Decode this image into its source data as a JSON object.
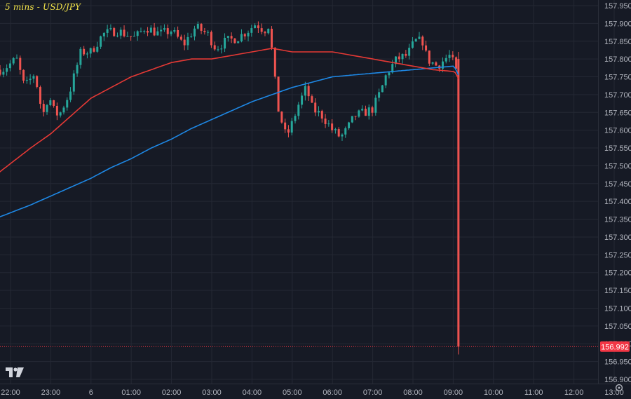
{
  "title": "5 mins - USD/JPY",
  "colors": {
    "background": "#161a25",
    "grid": "#242834",
    "axis_text": "#b2b5be",
    "up": "#26a69a",
    "down": "#ef5350",
    "ma_fast": "#e53935",
    "ma_slow": "#1e88e5",
    "price_tag": "#f23645"
  },
  "chart_data": {
    "type": "candlestick",
    "title": "5 mins - USD/JPY",
    "interval": "5 mins",
    "symbol": "USD/JPY",
    "x_ticks": [
      "22:00",
      "23:00",
      "6",
      "01:00",
      "02:00",
      "03:00",
      "04:00",
      "05:00",
      "06:00",
      "07:00",
      "08:00",
      "09:00",
      "10:00",
      "11:00",
      "12:00",
      "13:00"
    ],
    "ylim": [
      156.88,
      157.97
    ],
    "y_ticks": [
      157.95,
      157.9,
      157.85,
      157.8,
      157.75,
      157.7,
      157.65,
      157.6,
      157.55,
      157.5,
      157.45,
      157.4,
      157.35,
      157.3,
      157.25,
      157.2,
      157.15,
      157.1,
      157.05,
      157.0,
      156.95,
      156.9
    ],
    "y_tick_labels": [
      "157.950",
      "157.900",
      "157.850",
      "157.800",
      "157.750",
      "157.700",
      "157.650",
      "157.600",
      "157.550",
      "157.500",
      "157.450",
      "157.400",
      "157.350",
      "157.300",
      "157.250",
      "157.200",
      "157.150",
      "157.100",
      "157.050",
      "157.000",
      "156.950",
      "156.900"
    ],
    "last_price": 156.992,
    "last_price_label": "156.992",
    "candle_anchors": [
      [
        -0.2,
        157.77
      ],
      [
        0.15,
        157.8
      ],
      [
        0.35,
        157.72
      ],
      [
        0.6,
        157.76
      ],
      [
        0.8,
        157.64
      ],
      [
        0.95,
        157.7
      ],
      [
        1.05,
        157.66
      ],
      [
        1.2,
        157.64
      ],
      [
        1.45,
        157.7
      ],
      [
        1.75,
        157.82
      ],
      [
        2.0,
        157.82
      ],
      [
        2.3,
        157.87
      ],
      [
        2.65,
        157.88
      ],
      [
        2.85,
        157.87
      ],
      [
        3.1,
        157.86
      ],
      [
        3.35,
        157.89
      ],
      [
        3.7,
        157.87
      ],
      [
        4.0,
        157.88
      ],
      [
        4.3,
        157.84
      ],
      [
        4.6,
        157.89
      ],
      [
        4.9,
        157.87
      ],
      [
        5.1,
        157.83
      ],
      [
        5.35,
        157.85
      ],
      [
        5.65,
        157.86
      ],
      [
        5.9,
        157.88
      ],
      [
        6.1,
        157.9
      ],
      [
        6.3,
        157.88
      ],
      [
        6.45,
        157.9
      ],
      [
        6.5,
        157.81
      ],
      [
        6.65,
        157.66
      ],
      [
        6.85,
        157.58
      ],
      [
        7.0,
        157.62
      ],
      [
        7.15,
        157.67
      ],
      [
        7.35,
        157.72
      ],
      [
        7.5,
        157.66
      ],
      [
        7.75,
        157.64
      ],
      [
        8.0,
        157.6
      ],
      [
        8.2,
        157.58
      ],
      [
        8.35,
        157.6
      ],
      [
        8.55,
        157.64
      ],
      [
        8.8,
        157.65
      ],
      [
        9.0,
        157.66
      ],
      [
        9.2,
        157.71
      ],
      [
        9.35,
        157.76
      ],
      [
        9.6,
        157.8
      ],
      [
        9.85,
        157.81
      ],
      [
        10.05,
        157.85
      ],
      [
        10.25,
        157.85
      ],
      [
        10.35,
        157.8
      ],
      [
        10.6,
        157.78
      ],
      [
        10.9,
        157.81
      ],
      [
        11.05,
        157.78
      ],
      [
        11.08,
        157.76
      ]
    ],
    "ma_fast_anchors": [
      [
        -0.3,
        157.48
      ],
      [
        0.5,
        157.55
      ],
      [
        1.0,
        157.59
      ],
      [
        1.5,
        157.64
      ],
      [
        2.0,
        157.69
      ],
      [
        2.5,
        157.72
      ],
      [
        3.0,
        157.75
      ],
      [
        3.5,
        157.77
      ],
      [
        4.0,
        157.79
      ],
      [
        4.5,
        157.8
      ],
      [
        5.0,
        157.8
      ],
      [
        5.5,
        157.81
      ],
      [
        6.0,
        157.82
      ],
      [
        6.5,
        157.83
      ],
      [
        7.0,
        157.82
      ],
      [
        7.5,
        157.82
      ],
      [
        8.0,
        157.82
      ],
      [
        8.5,
        157.81
      ],
      [
        9.0,
        157.8
      ],
      [
        9.5,
        157.79
      ],
      [
        10.0,
        157.78
      ],
      [
        10.5,
        157.77
      ],
      [
        11.0,
        157.765
      ],
      [
        11.08,
        157.76
      ]
    ],
    "ma_slow_anchors": [
      [
        -0.3,
        157.355
      ],
      [
        0.5,
        157.39
      ],
      [
        1.0,
        157.415
      ],
      [
        1.5,
        157.44
      ],
      [
        2.0,
        157.465
      ],
      [
        2.5,
        157.495
      ],
      [
        3.0,
        157.52
      ],
      [
        3.5,
        157.55
      ],
      [
        4.0,
        157.575
      ],
      [
        4.5,
        157.605
      ],
      [
        5.0,
        157.63
      ],
      [
        5.5,
        157.655
      ],
      [
        6.0,
        157.68
      ],
      [
        6.5,
        157.7
      ],
      [
        7.0,
        157.72
      ],
      [
        7.5,
        157.735
      ],
      [
        8.0,
        157.75
      ],
      [
        8.5,
        157.755
      ],
      [
        9.0,
        157.76
      ],
      [
        9.5,
        157.765
      ],
      [
        10.0,
        157.77
      ],
      [
        10.5,
        157.775
      ],
      [
        11.0,
        157.78
      ],
      [
        11.08,
        157.77
      ]
    ],
    "crash_bar": {
      "open": 157.8,
      "high": 157.82,
      "low": 156.97,
      "close": 156.992
    }
  }
}
